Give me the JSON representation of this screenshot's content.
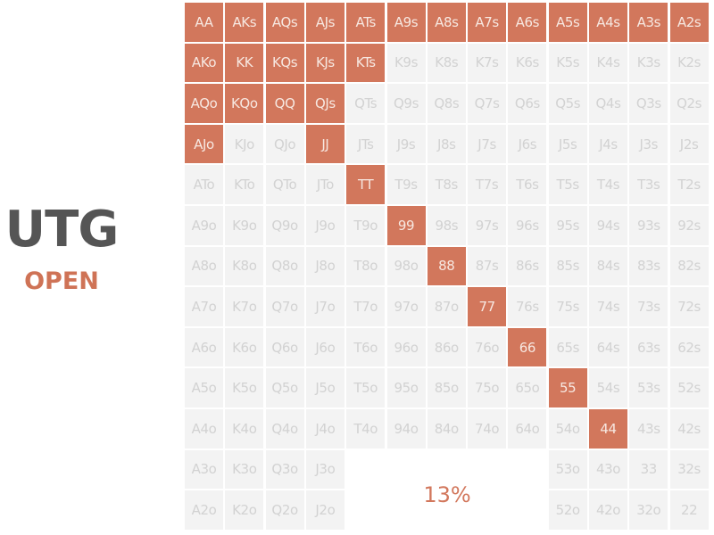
{
  "position": "UTG",
  "action": "OPEN",
  "range_percent": "13%",
  "colors": {
    "in_range": "#d2775c",
    "out_of_range": "#f3f3f3",
    "position_text": "#555555",
    "action_text": "#cf7356"
  },
  "hand_grid": [
    [
      "AA",
      "AKs",
      "AQs",
      "AJs",
      "ATs",
      "A9s",
      "A8s",
      "A7s",
      "A6s",
      "A5s",
      "A4s",
      "A3s",
      "A2s"
    ],
    [
      "AKo",
      "KK",
      "KQs",
      "KJs",
      "KTs",
      "K9s",
      "K8s",
      "K7s",
      "K6s",
      "K5s",
      "K4s",
      "K3s",
      "K2s"
    ],
    [
      "AQo",
      "KQo",
      "QQ",
      "QJs",
      "QTs",
      "Q9s",
      "Q8s",
      "Q7s",
      "Q6s",
      "Q5s",
      "Q4s",
      "Q3s",
      "Q2s"
    ],
    [
      "AJo",
      "KJo",
      "QJo",
      "JJ",
      "JTs",
      "J9s",
      "J8s",
      "J7s",
      "J6s",
      "J5s",
      "J4s",
      "J3s",
      "J2s"
    ],
    [
      "ATo",
      "KTo",
      "QTo",
      "JTo",
      "TT",
      "T9s",
      "T8s",
      "T7s",
      "T6s",
      "T5s",
      "T4s",
      "T3s",
      "T2s"
    ],
    [
      "A9o",
      "K9o",
      "Q9o",
      "J9o",
      "T9o",
      "99",
      "98s",
      "97s",
      "96s",
      "95s",
      "94s",
      "93s",
      "92s"
    ],
    [
      "A8o",
      "K8o",
      "Q8o",
      "J8o",
      "T8o",
      "98o",
      "88",
      "87s",
      "86s",
      "85s",
      "84s",
      "83s",
      "82s"
    ],
    [
      "A7o",
      "K7o",
      "Q7o",
      "J7o",
      "T7o",
      "97o",
      "87o",
      "77",
      "76s",
      "75s",
      "74s",
      "73s",
      "72s"
    ],
    [
      "A6o",
      "K6o",
      "Q6o",
      "J6o",
      "T6o",
      "96o",
      "86o",
      "76o",
      "66",
      "65s",
      "64s",
      "63s",
      "62s"
    ],
    [
      "A5o",
      "K5o",
      "Q5o",
      "J5o",
      "T5o",
      "95o",
      "85o",
      "75o",
      "65o",
      "55",
      "54s",
      "53s",
      "52s"
    ],
    [
      "A4o",
      "K4o",
      "Q4o",
      "J4o",
      "T4o",
      "94o",
      "84o",
      "74o",
      "64o",
      "54o",
      "44",
      "43s",
      "42s"
    ],
    [
      "A3o",
      "K3o",
      "Q3o",
      "J3o",
      "",
      "",
      "",
      "",
      "",
      "53o",
      "43o",
      "33",
      "32s"
    ],
    [
      "A2o",
      "K2o",
      "Q2o",
      "J2o",
      "",
      "",
      "",
      "",
      "",
      "52o",
      "42o",
      "32o",
      "22"
    ]
  ],
  "open_range": [
    "AA",
    "AKs",
    "AQs",
    "AJs",
    "ATs",
    "A9s",
    "A8s",
    "A7s",
    "A6s",
    "A5s",
    "A4s",
    "A3s",
    "A2s",
    "AKo",
    "KK",
    "KQs",
    "KJs",
    "KTs",
    "AQo",
    "KQo",
    "QQ",
    "QJs",
    "AJo",
    "JJ",
    "TT",
    "99",
    "88",
    "77",
    "66",
    "55",
    "44"
  ]
}
